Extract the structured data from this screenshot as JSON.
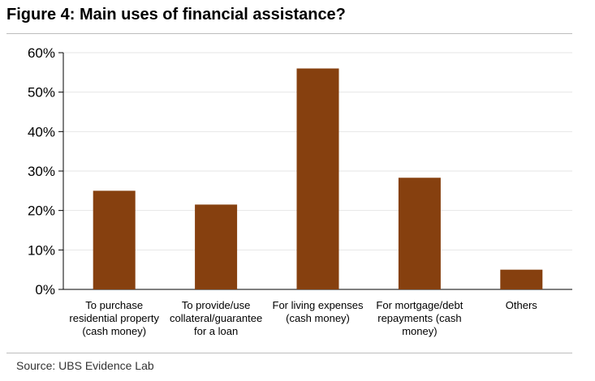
{
  "header": {
    "title": "Figure 4: Main uses of financial assistance?"
  },
  "footer": {
    "source": "Source: UBS Evidence Lab"
  },
  "colors": {
    "bar": "#86400f",
    "axis": "#000000",
    "grid": "#e6e6e6",
    "rule": "#bdbdbd"
  },
  "chart_data": {
    "type": "bar",
    "title": "Figure 4: Main uses of financial assistance?",
    "xlabel": "",
    "ylabel": "",
    "categories": [
      [
        "To purchase",
        "residential property",
        "(cash money)"
      ],
      [
        "To provide/use",
        "collateral/guarantee",
        "for a loan"
      ],
      [
        "For living expenses",
        "(cash money)"
      ],
      [
        "For mortgage/debt",
        "repayments (cash",
        "money)"
      ],
      [
        "Others"
      ]
    ],
    "values": [
      25,
      21.5,
      56,
      28.3,
      5
    ],
    "ylim": [
      0,
      60
    ],
    "yticks": [
      0,
      10,
      20,
      30,
      40,
      50,
      60
    ],
    "ytick_labels": [
      "0%",
      "10%",
      "20%",
      "30%",
      "40%",
      "50%",
      "60%"
    ],
    "grid": true,
    "legend": "none"
  }
}
